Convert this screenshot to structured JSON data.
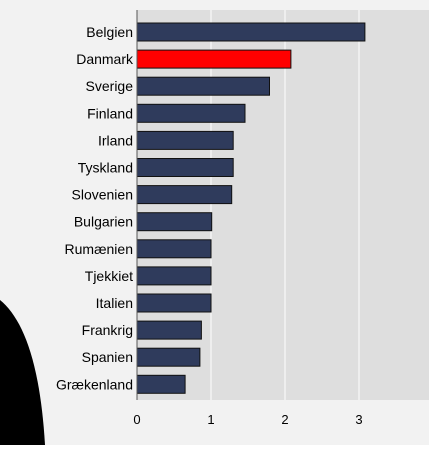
{
  "chart_data": {
    "type": "bar",
    "orientation": "horizontal",
    "categories": [
      "Belgien",
      "Danmark",
      "Sverige",
      "Finland",
      "Irland",
      "Tyskland",
      "Slovenien",
      "Bulgarien",
      "Rumænien",
      "Tjekkiet",
      "Italien",
      "Frankrig",
      "Spanien",
      "Grækenland"
    ],
    "values": [
      3.08,
      2.08,
      1.79,
      1.46,
      1.3,
      1.3,
      1.28,
      1.01,
      1.0,
      1.0,
      1.0,
      0.87,
      0.85,
      0.65
    ],
    "highlight_index": 1,
    "xlim": [
      0,
      4
    ],
    "xticks": [
      "0",
      "1",
      "2",
      "3",
      "4"
    ],
    "grid": true,
    "colors": {
      "bar": "#2f3b5c",
      "bar_highlight": "#ff0000",
      "bar_outline": "#111111",
      "plot_background": "#dedede",
      "outer_background": "#f2f2f2",
      "gridline": "#ffffff",
      "text": "#000000",
      "decor_shape": "#000000"
    }
  }
}
